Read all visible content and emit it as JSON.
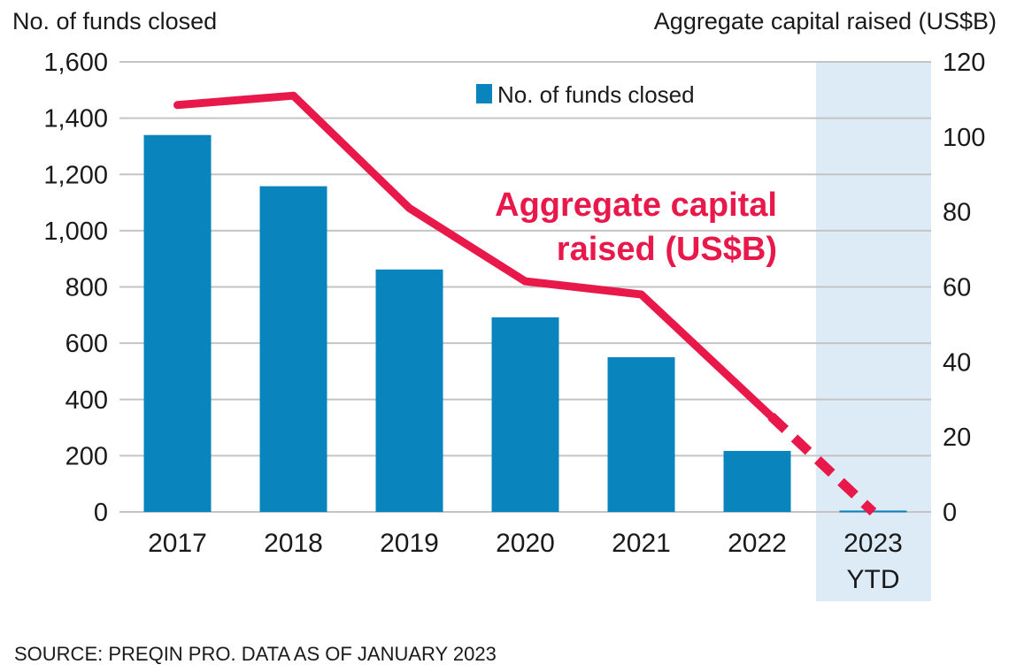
{
  "chart_data": {
    "type": "bar",
    "title": "",
    "categories": [
      "2017",
      "2018",
      "2019",
      "2020",
      "2021",
      "2022",
      "2023 YTD"
    ],
    "category_lines": [
      [
        "2017"
      ],
      [
        "2018"
      ],
      [
        "2019"
      ],
      [
        "2020"
      ],
      [
        "2021"
      ],
      [
        "2022"
      ],
      [
        "2023",
        "YTD"
      ]
    ],
    "series": [
      {
        "name": "No. of funds closed",
        "type": "bar",
        "axis": "left",
        "color": "#0a84bd",
        "values": [
          1340,
          1158,
          862,
          692,
          550,
          217,
          5
        ]
      },
      {
        "name": "Aggregate capital raised (US$B)",
        "type": "line",
        "axis": "right",
        "color": "#e8194a",
        "values": [
          108.5,
          111,
          81,
          61.5,
          58,
          29,
          0
        ],
        "dashed_from_index": 5
      }
    ],
    "ylabel_left": "No. of funds closed",
    "ylabel_right": "Aggregate capital raised (US$B)",
    "ylim_left": [
      0,
      1600
    ],
    "ylim_right": [
      0,
      120
    ],
    "yticks_left": [
      "0",
      "200",
      "400",
      "600",
      "800",
      "1,000",
      "1,200",
      "1,400",
      "1,600"
    ],
    "yticks_right": [
      "0",
      "20",
      "40",
      "60",
      "80",
      "100",
      "120"
    ],
    "grid": true,
    "highlight_category": "2023 YTD",
    "highlight_color": "#dcebf6",
    "legend": {
      "position": "top-right",
      "entries": [
        "No. of funds closed"
      ]
    },
    "annotation": {
      "lines": [
        "Aggregate capital",
        "raised (US$B)"
      ],
      "color": "#e8194a"
    },
    "source": "SOURCE: PREQIN PRO. DATA AS OF JANUARY 2023"
  }
}
